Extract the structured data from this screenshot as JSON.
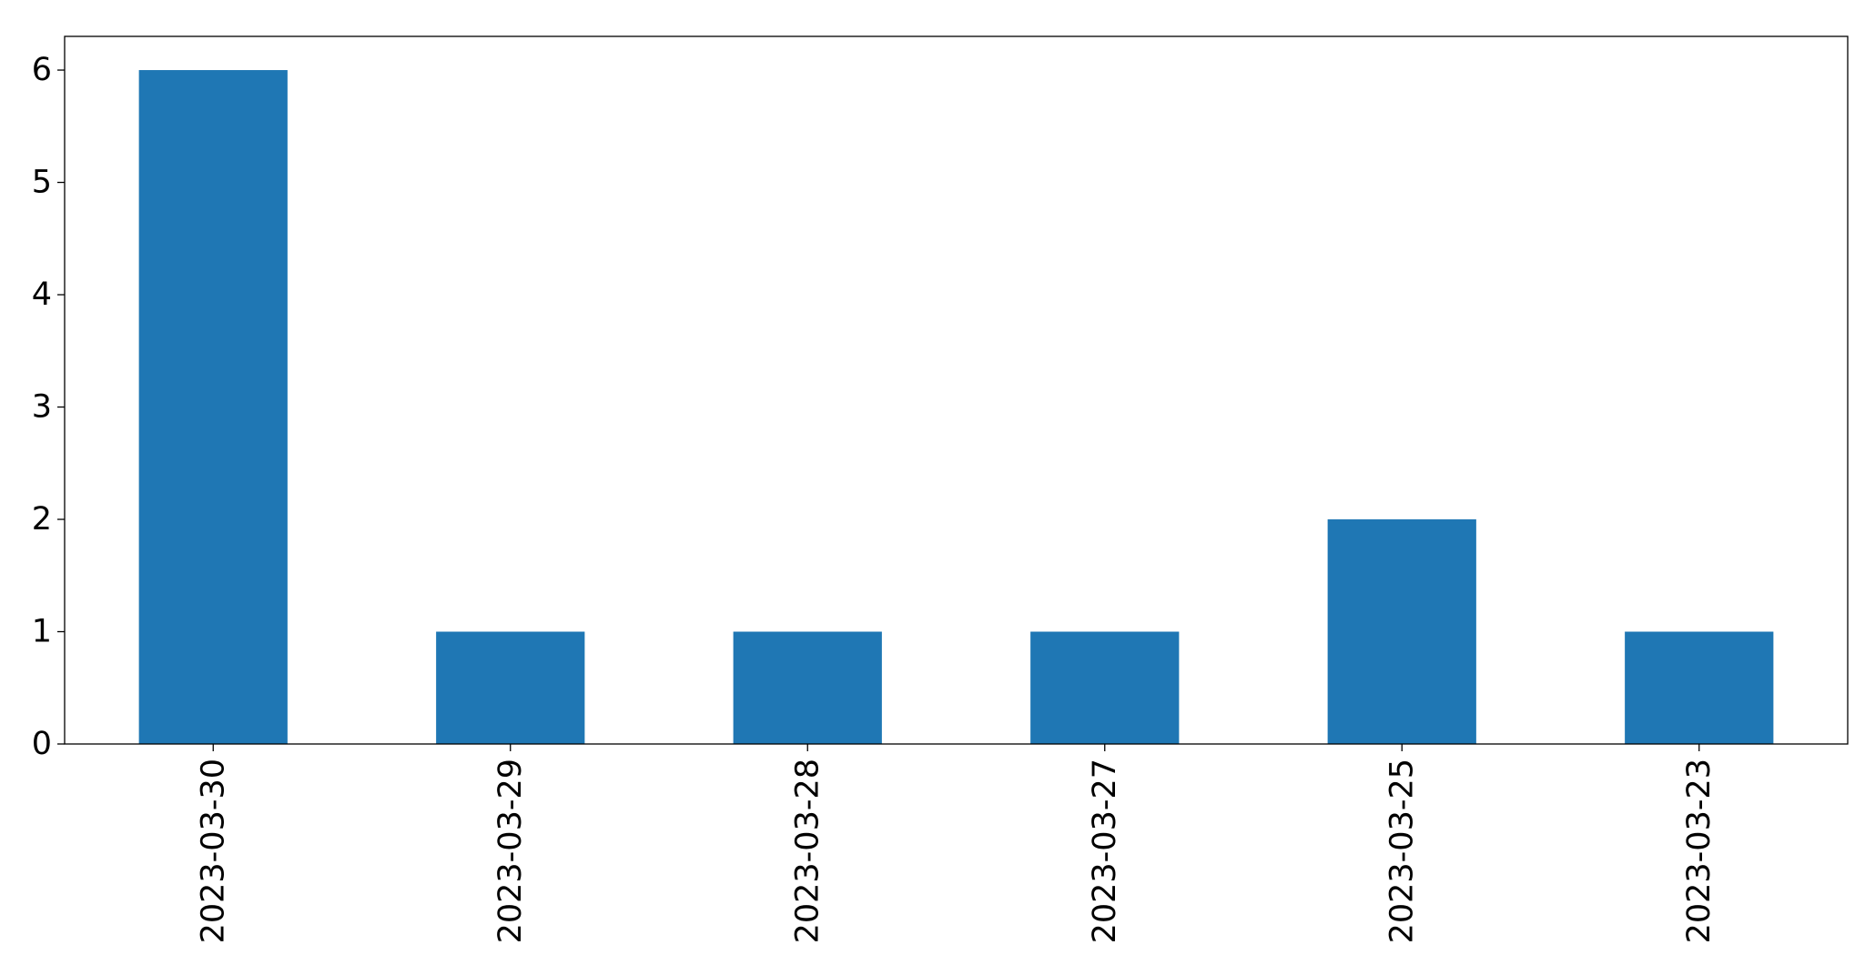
{
  "chart_data": {
    "type": "bar",
    "categories": [
      "2023-03-30",
      "2023-03-29",
      "2023-03-28",
      "2023-03-27",
      "2023-03-25",
      "2023-03-23"
    ],
    "values": [
      6,
      1,
      1,
      1,
      2,
      1
    ],
    "title": "",
    "xlabel": "",
    "ylabel": "",
    "ylim": [
      0,
      6.3
    ],
    "yticks": [
      0,
      1,
      2,
      3,
      4,
      5,
      6
    ],
    "grid": false,
    "bar_color": "#1f77b4",
    "x_tick_rotation": "vertical"
  }
}
